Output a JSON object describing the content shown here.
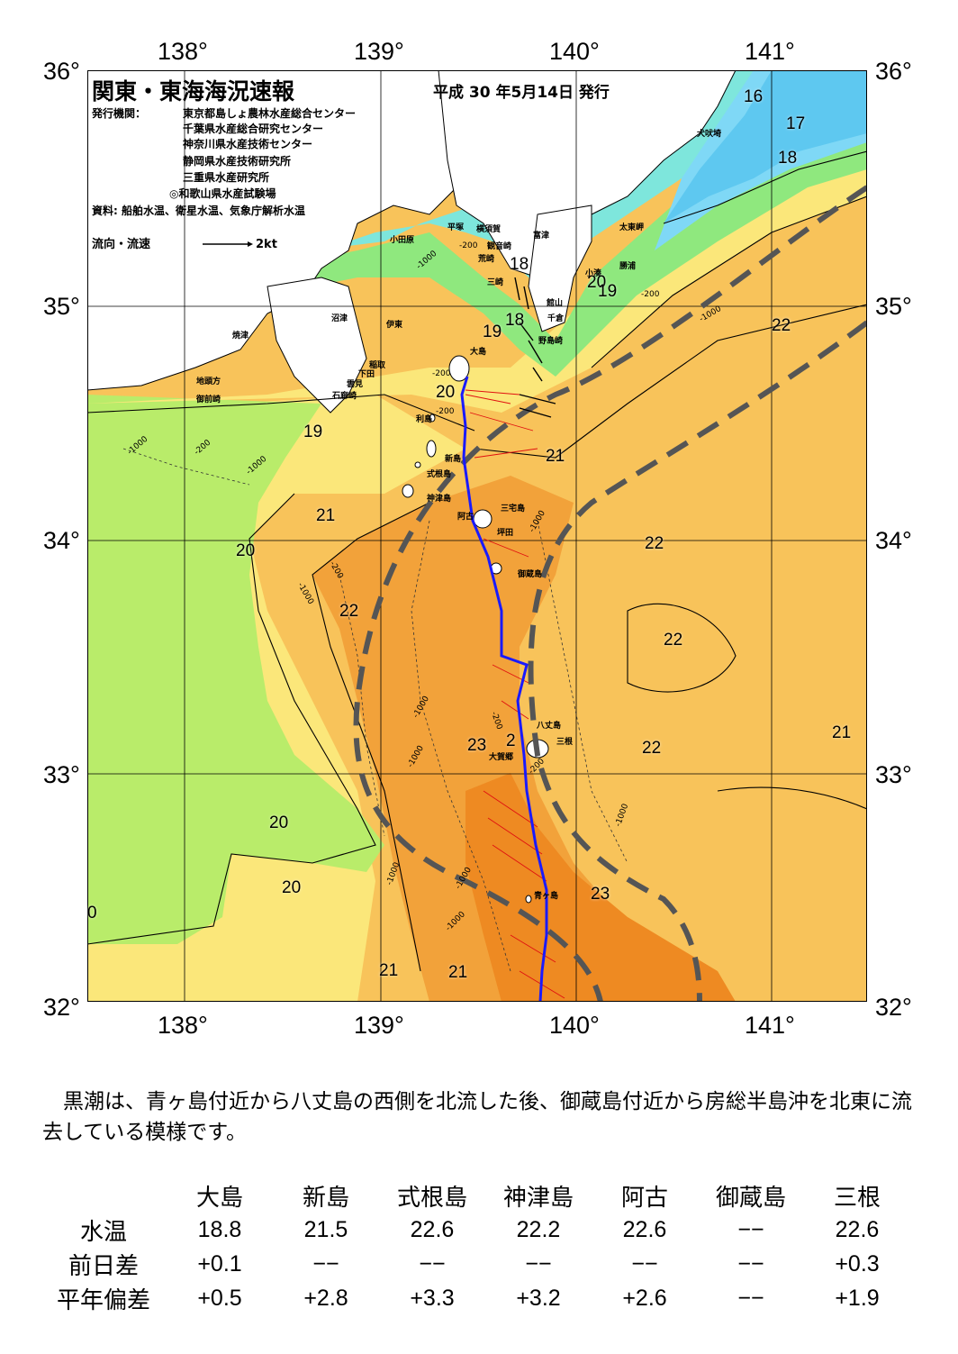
{
  "longitude_labels": [
    "138°",
    "139°",
    "140°",
    "141°"
  ],
  "latitude_labels": [
    "36°",
    "35°",
    "34°",
    "33°",
    "32°"
  ],
  "title": "関東・東海海況速報",
  "issue_date": "平成 30 年5月14日 発行",
  "publishers_label": "発行機関：",
  "publishers": [
    "東京都島しょ農林水産総合センター",
    "千葉県水産総合研究センター",
    "神奈川県水産技術センター",
    "静岡県水産技術研究所",
    "三重県水産研究所",
    "◎和歌山県水産試験場"
  ],
  "sources": "資料: 船舶水温、衛星水温、気象庁解析水温",
  "legend_label": "流向・流速",
  "legend_speed": "2kt",
  "place_names": {
    "inubozaki": "犬吠埼",
    "taitozaki": "太東岬",
    "katsuura": "勝浦",
    "kominato": "小湊",
    "futtsu": "富津",
    "tateyama": "館山",
    "chikura": "千倉",
    "nojimazaki": "野島崎",
    "yokosuka": "横須賀",
    "kannonzaki": "観音崎",
    "arasaki": "荒崎",
    "misaki": "三崎",
    "hiratsuka": "平塚",
    "odawara": "小田原",
    "numazu": "沼津",
    "ito": "伊東",
    "yaizu": "焼津",
    "inatori": "稲取",
    "shimoda": "下田",
    "mikawa": "雲見",
    "irozaki": "石廊崎",
    "jitokata": "地頭方",
    "omaezaki": "御前崎",
    "oshima": "大島",
    "toshima": "利島",
    "niijima": "新島",
    "shikinejima": "式根島",
    "kozushima": "神津島",
    "miyakejima": "三宅島",
    "ako": "阿古",
    "tsubota": "坪田",
    "mikurajima": "御蔵島",
    "hachijojima": "八丈島",
    "mitsune": "三根",
    "okago": "大賀郷",
    "aogashima": "青ヶ島"
  },
  "isotherm_labels": [
    "16",
    "17",
    "18",
    "18",
    "20",
    "19",
    "18",
    "19",
    "20",
    "19",
    "21",
    "20",
    "21",
    "22",
    "22",
    "22",
    "22",
    "22",
    "21",
    "23",
    "2",
    "20",
    "20",
    "23",
    "21",
    "21",
    "0"
  ],
  "depth_labels": [
    "-200",
    "-200",
    "-1000",
    "-200",
    "-1000",
    "-200",
    "-1000",
    "-200",
    "-1000",
    "-1000",
    "-1000",
    "-200",
    "-1000",
    "-1000",
    "-200",
    "-1000",
    "-200",
    "-1000",
    "-1000",
    "-1000"
  ],
  "description": "黒潮は、青ヶ島付近から八丈島の西側を北流した後、御蔵島付近から房総半島沖を北東に流去している模様です。",
  "table": {
    "stations": [
      "大島",
      "新島",
      "式根島",
      "神津島",
      "阿古",
      "御蔵島",
      "三根"
    ],
    "rows": [
      {
        "label": "水温",
        "values": [
          "18.8",
          "21.5",
          "22.6",
          "22.2",
          "22.6",
          "−−",
          "22.6"
        ]
      },
      {
        "label": "前日差",
        "values": [
          "+0.1",
          "−−",
          "−−",
          "−−",
          "−−",
          "−−",
          "+0.3"
        ]
      },
      {
        "label": "平年偏差",
        "values": [
          "+0.5",
          "+2.8",
          "+3.3",
          "+3.2",
          "+2.6",
          "−−",
          "+1.9"
        ]
      }
    ]
  },
  "colors": {
    "t16": "#5ec8f0",
    "t17": "#7fd8f6",
    "t18": "#7ee6dc",
    "t19": "#8fe87e",
    "t20": "#b9ec6a",
    "t21": "#fbe77a",
    "t22": "#f8c35a",
    "t23": "#f2a23a",
    "t24": "#ee8a22",
    "kuroshio_axis": "#555555",
    "ship_track": "#1a1aff",
    "current_vectors": "#e01010"
  }
}
